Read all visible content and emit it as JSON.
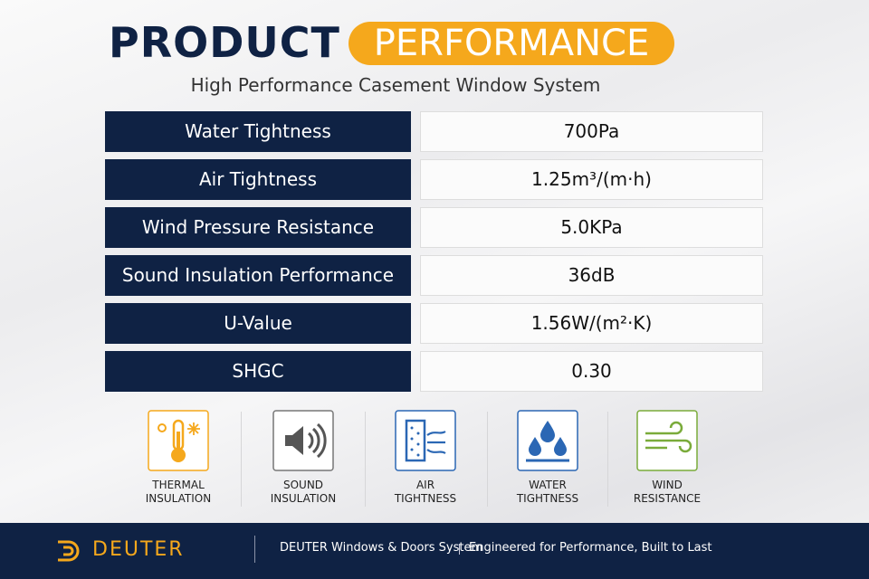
{
  "header": {
    "title": "PRODUCT",
    "highlight": "PERFORMANCE",
    "subtitle": "High Performance Casement Window System"
  },
  "table": {
    "rows": [
      [
        "Water Tightness",
        "700Pa"
      ],
      [
        "Air Tightness",
        "1.25m³/(m·h)"
      ],
      [
        "Wind Pressure Resistance",
        "5.0KPa"
      ],
      [
        "Sound Insulation Performance",
        "36dB"
      ],
      [
        "U-Value",
        "1.56W/(m²·K)"
      ],
      [
        "SHGC",
        "0.30"
      ]
    ]
  },
  "features": [
    {
      "line1": "THERMAL",
      "line2": "INSULATION"
    },
    {
      "line1": "SOUND",
      "line2": "INSULATION"
    },
    {
      "line1": "AIR",
      "line2": "TIGHTNESS"
    },
    {
      "line1": "WATER",
      "line2": "TIGHTNESS"
    },
    {
      "line1": "WIND",
      "line2": "RESISTANCE"
    }
  ],
  "footer": {
    "brand": "DEUTER",
    "company": "DEUTER Windows & Doors System",
    "tagline": "Engineered for Performance, Built to Last"
  }
}
